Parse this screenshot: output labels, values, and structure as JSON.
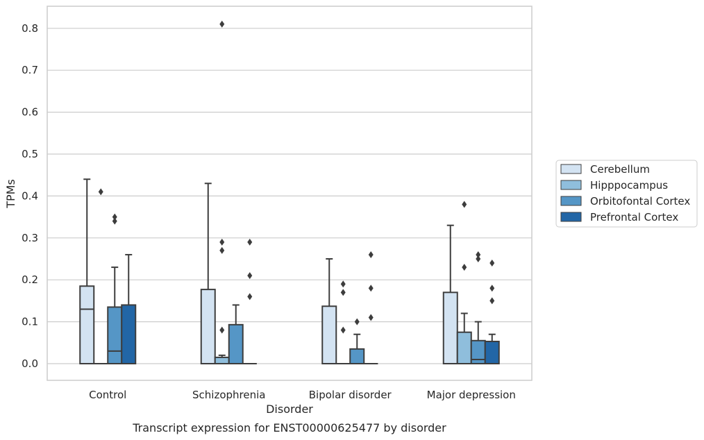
{
  "chart_data": {
    "type": "box",
    "title": "",
    "caption": "Transcript expression for ENST00000625477 by disorder",
    "xlabel": "Disorder",
    "ylabel": "TPMs",
    "ylim": [
      -0.04,
      0.855
    ],
    "yticks": [
      0.0,
      0.1,
      0.2,
      0.3,
      0.4,
      0.5,
      0.6,
      0.7,
      0.8
    ],
    "ytick_labels": [
      "0.0",
      "0.1",
      "0.2",
      "0.3",
      "0.4",
      "0.5",
      "0.6",
      "0.7",
      "0.8"
    ],
    "grid": "horizontal",
    "legend_position": "right",
    "categories": [
      "Control",
      "Schizophrenia",
      "Bipolar disorder",
      "Major depression"
    ],
    "series": [
      {
        "name": "Cerebellum",
        "color": "#d3e3f2",
        "boxes": [
          {
            "q1": 0.0,
            "median": 0.13,
            "q3": 0.185,
            "whisker_low": 0.0,
            "whisker_high": 0.44,
            "outliers": []
          },
          {
            "q1": 0.0,
            "median": 0.0,
            "q3": 0.177,
            "whisker_low": 0.0,
            "whisker_high": 0.43,
            "outliers": []
          },
          {
            "q1": 0.0,
            "median": 0.0,
            "q3": 0.137,
            "whisker_low": 0.0,
            "whisker_high": 0.25,
            "outliers": []
          },
          {
            "q1": 0.0,
            "median": 0.0,
            "q3": 0.17,
            "whisker_low": 0.0,
            "whisker_high": 0.33,
            "outliers": []
          }
        ]
      },
      {
        "name": "Hipppocampus",
        "color": "#8fbedc",
        "boxes": [
          {
            "q1": 0.0,
            "median": 0.0,
            "q3": 0.0,
            "whisker_low": 0.0,
            "whisker_high": 0.0,
            "outliers": [
              0.41
            ]
          },
          {
            "q1": 0.0,
            "median": 0.0,
            "q3": 0.015,
            "whisker_low": 0.0,
            "whisker_high": 0.02,
            "outliers": [
              0.08,
              0.27,
              0.29,
              0.81
            ]
          },
          {
            "q1": 0.0,
            "median": 0.0,
            "q3": 0.0,
            "whisker_low": 0.0,
            "whisker_high": 0.0,
            "outliers": [
              0.08,
              0.17,
              0.19
            ]
          },
          {
            "q1": 0.0,
            "median": 0.0,
            "q3": 0.075,
            "whisker_low": 0.0,
            "whisker_high": 0.12,
            "outliers": [
              0.23,
              0.38
            ]
          }
        ]
      },
      {
        "name": "Orbitofontal Cortex",
        "color": "#5596c6",
        "boxes": [
          {
            "q1": 0.0,
            "median": 0.03,
            "q3": 0.135,
            "whisker_low": 0.0,
            "whisker_high": 0.23,
            "outliers": [
              0.34,
              0.35
            ]
          },
          {
            "q1": 0.0,
            "median": 0.0,
            "q3": 0.093,
            "whisker_low": 0.0,
            "whisker_high": 0.14,
            "outliers": []
          },
          {
            "q1": 0.0,
            "median": 0.0,
            "q3": 0.035,
            "whisker_low": 0.0,
            "whisker_high": 0.07,
            "outliers": [
              0.1
            ]
          },
          {
            "q1": 0.0,
            "median": 0.01,
            "q3": 0.055,
            "whisker_low": 0.0,
            "whisker_high": 0.1,
            "outliers": [
              0.25,
              0.26
            ]
          }
        ]
      },
      {
        "name": "Prefrontal Cortex",
        "color": "#2266a6",
        "boxes": [
          {
            "q1": 0.0,
            "median": 0.0,
            "q3": 0.14,
            "whisker_low": 0.0,
            "whisker_high": 0.26,
            "outliers": []
          },
          {
            "q1": 0.0,
            "median": 0.0,
            "q3": 0.0,
            "whisker_low": 0.0,
            "whisker_high": 0.0,
            "outliers": [
              0.16,
              0.21,
              0.29
            ]
          },
          {
            "q1": 0.0,
            "median": 0.0,
            "q3": 0.0,
            "whisker_low": 0.0,
            "whisker_high": 0.0,
            "outliers": [
              0.11,
              0.18,
              0.26
            ]
          },
          {
            "q1": 0.0,
            "median": 0.0,
            "q3": 0.053,
            "whisker_low": 0.0,
            "whisker_high": 0.07,
            "outliers": [
              0.15,
              0.18,
              0.24
            ]
          }
        ]
      }
    ]
  }
}
